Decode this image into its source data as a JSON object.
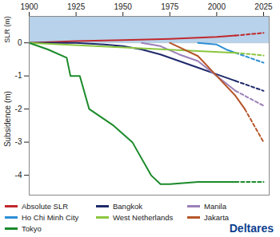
{
  "chart_data": {
    "type": "line",
    "y_label_top": "SLR (m)",
    "y_label": "Subsidence (m)",
    "source": "Deltares",
    "xlim": [
      1900,
      2028
    ],
    "xticks": [
      1900,
      1925,
      1950,
      1975,
      2000,
      2025
    ],
    "ylim": [
      -4.6,
      0.8
    ],
    "yticks": [
      0,
      -1,
      -2,
      -3,
      -4
    ],
    "grid": false,
    "legend": "bottom",
    "series": [
      {
        "name": "Absolute SLR",
        "color": "#c0282d",
        "x": [
          1900,
          1925,
          1950,
          1975,
          2000,
          2010
        ],
        "values": [
          0,
          0.05,
          0.08,
          0.12,
          0.18,
          0.22
        ],
        "projection": {
          "line_style": "dashed",
          "x": [
            2010,
            2025
          ],
          "values": [
            0.22,
            0.3
          ]
        }
      },
      {
        "name": "Bangkok",
        "color": "#1f2a6b",
        "x": [
          1900,
          1925,
          1940,
          1950,
          1960,
          1970,
          1980,
          1990,
          2000,
          2010
        ],
        "values": [
          0,
          0,
          -0.05,
          -0.1,
          -0.2,
          -0.35,
          -0.55,
          -0.75,
          -0.95,
          -1.15
        ],
        "projection": {
          "line_style": "dashed",
          "x": [
            2010,
            2025
          ],
          "values": [
            -1.15,
            -1.45
          ]
        }
      },
      {
        "name": "Manila",
        "color": "#9b7fb8",
        "x": [
          1960,
          1970,
          1980,
          1990,
          2000,
          2010
        ],
        "values": [
          0,
          -0.1,
          -0.35,
          -0.55,
          -1.0,
          -1.45
        ],
        "projection": {
          "line_style": "dashed",
          "x": [
            2010,
            2025
          ],
          "values": [
            -1.45,
            -1.9
          ]
        }
      },
      {
        "name": "Ho Chi Minh City",
        "color": "#2d8fd6",
        "x": [
          1990,
          2000,
          2005,
          2010
        ],
        "values": [
          0,
          -0.05,
          -0.2,
          -0.3
        ],
        "projection": {
          "line_style": "dashed",
          "x": [
            2010,
            2025
          ],
          "values": [
            -0.3,
            -0.6
          ]
        }
      },
      {
        "name": "West Netherlands",
        "color": "#8cc63f",
        "x": [
          1900,
          2010
        ],
        "values": [
          0,
          -0.3
        ],
        "projection": {
          "line_style": "dashed",
          "x": [
            2010,
            2025
          ],
          "values": [
            -0.3,
            -0.38
          ]
        }
      },
      {
        "name": "Jakarta",
        "color": "#b5562a",
        "x": [
          1975,
          1990,
          2000,
          2010,
          2015
        ],
        "values": [
          0,
          -0.4,
          -1.0,
          -1.6,
          -2.0
        ],
        "projection": {
          "line_style": "dashed",
          "x": [
            2015,
            2025
          ],
          "values": [
            -2.0,
            -3.0
          ]
        }
      },
      {
        "name": "Tokyo",
        "color": "#1a8a2a",
        "x": [
          1900,
          1910,
          1920,
          1922,
          1927,
          1932,
          1945,
          1955,
          1965,
          1970,
          1975,
          1990,
          2000,
          2010
        ],
        "values": [
          0,
          -0.2,
          -0.45,
          -1.0,
          -1.0,
          -2.0,
          -2.5,
          -3.0,
          -4.0,
          -4.27,
          -4.27,
          -4.2,
          -4.2,
          -4.2
        ],
        "projection": {
          "line_style": "dashed",
          "x": [
            2010,
            2025
          ],
          "values": [
            -4.2,
            -4.2
          ]
        }
      }
    ]
  }
}
